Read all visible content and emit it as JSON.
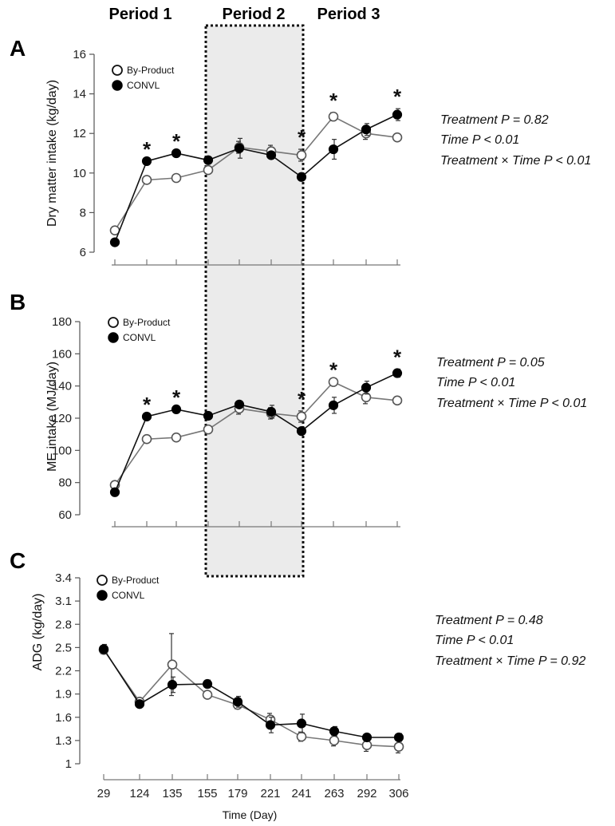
{
  "periods": [
    "Period 1",
    "Period 2",
    "Period 3"
  ],
  "x_days": [
    "29",
    "124",
    "135",
    "155",
    "179",
    "221",
    "241",
    "263",
    "292",
    "306"
  ],
  "x_axis_label": "Time (Day)",
  "colors": {
    "line": "#222222",
    "shade": "#ebebeb",
    "open_fill": "#ffffff",
    "closed_fill": "#000000"
  },
  "chart_data": [
    {
      "type": "line",
      "panel": "A",
      "ylabel": "Dry matter intake (kg/day)",
      "ylim": [
        6,
        16
      ],
      "yticks": [
        "6",
        "8",
        "10",
        "12",
        "14",
        "16"
      ],
      "categories": [
        "29",
        "124",
        "135",
        "155",
        "179",
        "221",
        "241",
        "263",
        "292",
        "306"
      ],
      "series": [
        {
          "name": "By-Product",
          "marker": "open",
          "values": [
            7.1,
            9.65,
            9.75,
            10.15,
            11.3,
            11.1,
            10.9,
            12.85,
            12.0,
            11.8
          ],
          "errors": [
            0,
            0,
            0,
            0,
            0.3,
            0.3,
            0.3,
            0.2,
            0.3,
            0
          ]
        },
        {
          "name": "CONVL",
          "marker": "closed",
          "values": [
            6.5,
            10.6,
            11.0,
            10.65,
            11.25,
            10.9,
            9.8,
            11.2,
            12.2,
            12.95
          ],
          "errors": [
            0,
            0,
            0,
            0,
            0.5,
            0,
            0,
            0.5,
            0.3,
            0.3
          ]
        }
      ],
      "significant": [
        "124",
        "135",
        "241",
        "263",
        "306"
      ],
      "significance_mark": "*",
      "stats": [
        "Treatment P = 0.82",
        "Time P < 0.01",
        "Treatment × Time P < 0.01"
      ]
    },
    {
      "type": "line",
      "panel": "B",
      "ylabel": "ME intake (MJ/day)",
      "ylim": [
        60,
        180
      ],
      "yticks": [
        "60",
        "80",
        "100",
        "120",
        "140",
        "160",
        "180"
      ],
      "categories": [
        "29",
        "124",
        "135",
        "155",
        "179",
        "221",
        "241",
        "263",
        "292",
        "306"
      ],
      "series": [
        {
          "name": "By-Product",
          "marker": "open",
          "values": [
            78.5,
            107,
            108,
            113,
            126,
            123,
            121,
            142.5,
            133,
            131
          ],
          "errors": [
            0,
            0,
            0,
            0,
            3.5,
            3.5,
            3.5,
            0,
            4,
            0
          ]
        },
        {
          "name": "CONVL",
          "marker": "closed",
          "values": [
            74,
            121,
            125.5,
            121.5,
            128.5,
            124,
            112,
            128,
            139,
            148
          ],
          "errors": [
            0,
            0,
            0,
            0,
            0,
            4,
            0,
            5,
            4,
            2.5
          ]
        }
      ],
      "significant": [
        "124",
        "135",
        "241",
        "263",
        "306"
      ],
      "significance_mark": "*",
      "stats": [
        "Treatment P = 0.05",
        "Time P < 0.01",
        "Treatment × Time P < 0.01"
      ]
    },
    {
      "type": "line",
      "panel": "C",
      "ylabel": "ADG (kg/day)",
      "ylim": [
        1,
        3.4
      ],
      "yticks": [
        "1",
        "1.3",
        "1.6",
        "1.9",
        "2.2",
        "2.5",
        "2.8",
        "3.1",
        "3.4"
      ],
      "categories": [
        "29",
        "124",
        "135",
        "155",
        "179",
        "221",
        "241",
        "263",
        "292",
        "306"
      ],
      "series": [
        {
          "name": "By-Product",
          "marker": "open",
          "values": [
            2.47,
            1.8,
            2.28,
            1.89,
            1.76,
            1.57,
            1.35,
            1.3,
            1.24,
            1.22
          ],
          "errors": [
            0.05,
            0,
            0.4,
            0,
            0.05,
            0.08,
            0.06,
            0.07,
            0.08,
            0.08
          ]
        },
        {
          "name": "CONVL",
          "marker": "closed",
          "values": [
            2.48,
            1.77,
            2.02,
            2.03,
            1.8,
            1.5,
            1.52,
            1.42,
            1.34,
            1.34
          ],
          "errors": [
            0.06,
            0,
            0.1,
            0.05,
            0.07,
            0.1,
            0.12,
            0.06,
            0,
            0.05
          ]
        }
      ],
      "significant": [],
      "significance_mark": "*",
      "stats": [
        "Treatment P = 0.48",
        "Time P < 0.01",
        "Treatment × Time P = 0.92"
      ]
    }
  ]
}
